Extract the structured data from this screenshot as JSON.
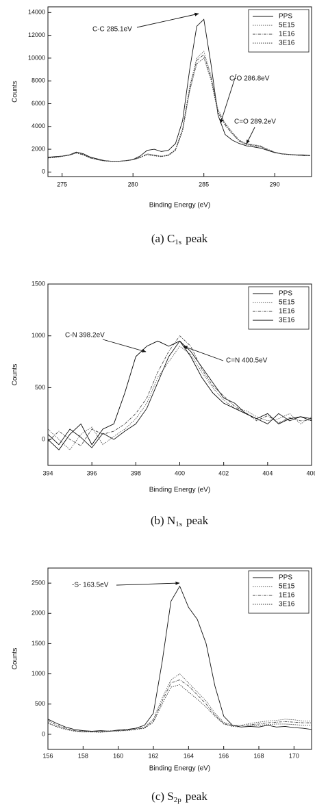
{
  "chart_data": [
    {
      "type": "line",
      "caption": [
        "(a) C",
        "1s",
        "peak"
      ],
      "x_label": "Binding Energy (eV)",
      "y_label": "Counts",
      "annotations": [
        "C-C 285.1eV",
        "C-O 286.8eV",
        "C=O 289.2eV"
      ],
      "legend": "upper right",
      "xlim": [
        274,
        292.6
      ],
      "xticks": [
        275,
        280,
        285,
        290
      ],
      "ylim": [
        -400,
        14500
      ],
      "yticks": [
        0,
        2000,
        4000,
        6000,
        8000,
        10000,
        12000,
        14000
      ],
      "x": [
        274,
        274.5,
        275,
        275.5,
        276,
        276.5,
        277,
        277.5,
        278,
        278.5,
        279,
        279.5,
        280,
        280.5,
        281,
        281.5,
        282,
        282.5,
        283,
        283.5,
        284,
        284.5,
        285,
        285.5,
        286,
        286.5,
        287,
        287.5,
        288,
        288.5,
        289,
        289.5,
        290,
        290.5,
        291,
        291.5,
        292,
        292.5
      ],
      "series": [
        {
          "name": "PPS",
          "color": "#111111",
          "dash": "solid",
          "values": [
            1300,
            1350,
            1400,
            1500,
            1750,
            1600,
            1300,
            1150,
            1000,
            950,
            950,
            1000,
            1100,
            1400,
            1900,
            2000,
            1800,
            1900,
            2500,
            4500,
            9000,
            12800,
            13400,
            9500,
            5000,
            3300,
            2800,
            2500,
            2300,
            2200,
            2100,
            1900,
            1700,
            1600,
            1550,
            1500,
            1500,
            1450
          ]
        },
        {
          "name": "5E15",
          "color": "#555555",
          "dash": "dot",
          "values": [
            1250,
            1300,
            1400,
            1500,
            1700,
            1550,
            1250,
            1100,
            1000,
            950,
            950,
            1000,
            1100,
            1300,
            1600,
            1500,
            1400,
            1500,
            2000,
            3800,
            7500,
            10000,
            10600,
            8500,
            5500,
            4300,
            3500,
            2800,
            2500,
            2400,
            2300,
            2000,
            1750,
            1600,
            1550,
            1500,
            1450,
            1450
          ]
        },
        {
          "name": "1E16",
          "color": "#444444",
          "dash": "dashdot",
          "values": [
            1250,
            1300,
            1380,
            1480,
            1680,
            1520,
            1230,
            1080,
            980,
            940,
            940,
            990,
            1080,
            1280,
            1550,
            1450,
            1380,
            1480,
            1950,
            3700,
            7300,
            9800,
            10300,
            8300,
            5300,
            4200,
            3400,
            2750,
            2450,
            2350,
            2250,
            1980,
            1730,
            1590,
            1540,
            1490,
            1450,
            1440
          ]
        },
        {
          "name": "3E16",
          "color": "#333333",
          "dash": "dot",
          "values": [
            1230,
            1280,
            1370,
            1470,
            1660,
            1500,
            1220,
            1070,
            970,
            930,
            930,
            980,
            1070,
            1260,
            1520,
            1420,
            1350,
            1450,
            1900,
            3600,
            7100,
            9500,
            10000,
            8100,
            5200,
            4100,
            3350,
            2700,
            2400,
            2300,
            2200,
            1950,
            1720,
            1580,
            1530,
            1480,
            1440,
            1430
          ]
        }
      ]
    },
    {
      "type": "line",
      "caption": [
        "(b) N",
        "1s",
        "peak"
      ],
      "x_label": "Binding Energy (eV)",
      "y_label": "Counts",
      "annotations": [
        "C-N 398.2eV",
        "C=N 400.5eV"
      ],
      "legend": "upper right",
      "xlim": [
        394,
        406
      ],
      "xticks": [
        394,
        396,
        398,
        400,
        402,
        404,
        406
      ],
      "ylim": [
        -250,
        1500
      ],
      "yticks": [
        0,
        500,
        1000,
        1500
      ],
      "x": [
        394,
        394.5,
        395,
        395.5,
        396,
        396.5,
        397,
        397.5,
        398,
        398.5,
        399,
        399.5,
        400,
        400.5,
        401,
        401.5,
        402,
        402.5,
        403,
        403.5,
        404,
        404.5,
        405,
        405.5,
        406
      ],
      "series": [
        {
          "name": "PPS",
          "color": "#111111",
          "dash": "solid",
          "values": [
            50,
            -50,
            100,
            20,
            -80,
            60,
            0,
            80,
            150,
            300,
            550,
            800,
            950,
            850,
            700,
            550,
            400,
            350,
            250,
            200,
            150,
            250,
            180,
            220,
            200
          ]
        },
        {
          "name": "5E15",
          "color": "#555555",
          "dash": "dot",
          "values": [
            100,
            0,
            -100,
            50,
            120,
            -50,
            30,
            100,
            200,
            350,
            600,
            750,
            900,
            820,
            650,
            500,
            380,
            300,
            280,
            220,
            180,
            200,
            250,
            150,
            220
          ]
        },
        {
          "name": "1E16",
          "color": "#444444",
          "dash": "dashdot",
          "values": [
            -20,
            80,
            0,
            -60,
            100,
            50,
            80,
            150,
            250,
            400,
            650,
            850,
            1000,
            900,
            680,
            520,
            420,
            320,
            260,
            180,
            230,
            160,
            210,
            180,
            190
          ]
        },
        {
          "name": "3E16",
          "color": "#000000",
          "dash": "solid",
          "values": [
            0,
            -100,
            50,
            150,
            -50,
            100,
            150,
            450,
            800,
            900,
            950,
            900,
            950,
            800,
            600,
            450,
            350,
            300,
            250,
            200,
            250,
            150,
            200,
            220,
            180
          ]
        }
      ]
    },
    {
      "type": "line",
      "caption": [
        "(c) S",
        "2p",
        "peak"
      ],
      "x_label": "Binding Energy (eV)",
      "y_label": "Counts",
      "annotations": [
        "-S- 163.5eV"
      ],
      "legend": "upper right",
      "xlim": [
        156,
        171
      ],
      "xticks": [
        156,
        158,
        160,
        162,
        164,
        166,
        168,
        170
      ],
      "ylim": [
        -250,
        2750
      ],
      "yticks": [
        0,
        500,
        1000,
        1500,
        2000,
        2500
      ],
      "x": [
        156,
        156.5,
        157,
        157.5,
        158,
        158.5,
        159,
        159.5,
        160,
        160.5,
        161,
        161.5,
        162,
        162.5,
        163,
        163.5,
        164,
        164.5,
        165,
        165.5,
        166,
        166.5,
        167,
        167.5,
        168,
        168.5,
        169,
        169.5,
        170,
        170.5,
        171
      ],
      "series": [
        {
          "name": "PPS",
          "color": "#111111",
          "dash": "solid",
          "values": [
            250,
            180,
            120,
            80,
            60,
            50,
            60,
            50,
            70,
            80,
            100,
            150,
            350,
            1200,
            2200,
            2450,
            2100,
            1900,
            1500,
            800,
            300,
            150,
            120,
            130,
            120,
            150,
            120,
            130,
            110,
            100,
            80
          ]
        },
        {
          "name": "5E15",
          "color": "#555555",
          "dash": "dot",
          "values": [
            200,
            120,
            80,
            50,
            40,
            50,
            40,
            60,
            50,
            70,
            90,
            120,
            250,
            600,
            900,
            1000,
            850,
            700,
            550,
            350,
            200,
            150,
            150,
            180,
            200,
            220,
            230,
            250,
            240,
            220,
            220
          ]
        },
        {
          "name": "1E16",
          "color": "#444444",
          "dash": "dashdot",
          "values": [
            230,
            150,
            100,
            60,
            50,
            40,
            50,
            50,
            60,
            70,
            80,
            110,
            220,
            550,
            850,
            900,
            800,
            650,
            500,
            320,
            180,
            140,
            140,
            160,
            170,
            190,
            200,
            210,
            200,
            190,
            190
          ]
        },
        {
          "name": "3E16",
          "color": "#333333",
          "dash": "dot",
          "values": [
            180,
            130,
            90,
            60,
            40,
            40,
            30,
            50,
            60,
            60,
            80,
            100,
            200,
            500,
            780,
            820,
            700,
            580,
            450,
            300,
            170,
            130,
            120,
            140,
            150,
            160,
            170,
            170,
            160,
            150,
            150
          ]
        }
      ]
    }
  ]
}
